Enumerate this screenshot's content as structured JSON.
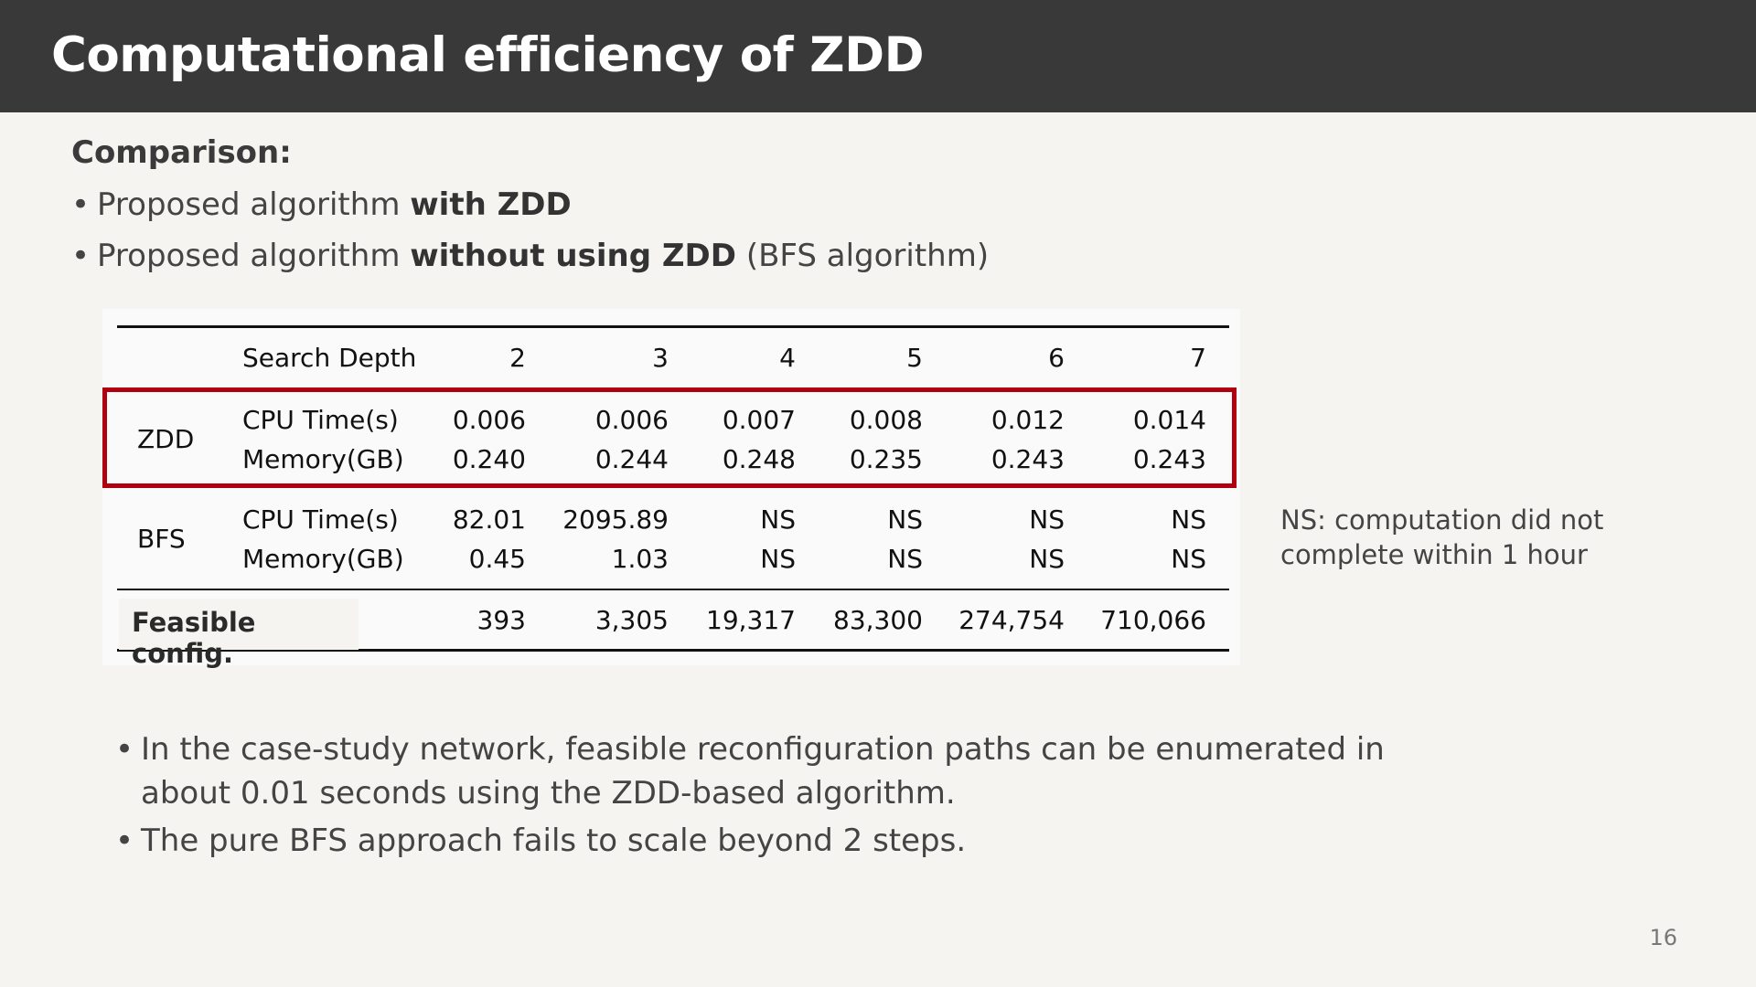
{
  "title": "Computational efficiency of ZDD",
  "subhead": "Comparison:",
  "bullets_top": [
    {
      "pre": "Proposed algorithm ",
      "bold": "with ZDD",
      "post": ""
    },
    {
      "pre": "Proposed algorithm ",
      "bold": "without using ZDD",
      "post": " (BFS algorithm)"
    }
  ],
  "table": {
    "header_label": "Search Depth",
    "depths": [
      "2",
      "3",
      "4",
      "5",
      "6",
      "7"
    ],
    "groups": [
      {
        "name": "ZDD",
        "rows": [
          {
            "metric": "CPU Time(s)",
            "values": [
              "0.006",
              "0.006",
              "0.007",
              "0.008",
              "0.012",
              "0.014"
            ]
          },
          {
            "metric": "Memory(GB)",
            "values": [
              "0.240",
              "0.244",
              "0.248",
              "0.235",
              "0.243",
              "0.243"
            ]
          }
        ]
      },
      {
        "name": "BFS",
        "rows": [
          {
            "metric": "CPU Time(s)",
            "values": [
              "82.01",
              "2095.89",
              "NS",
              "NS",
              "NS",
              "NS"
            ]
          },
          {
            "metric": "Memory(GB)",
            "values": [
              "0.45",
              "1.03",
              "NS",
              "NS",
              "NS",
              "NS"
            ]
          }
        ]
      }
    ],
    "feasible_label": "Feasible config.",
    "feasible_values": [
      "393",
      "3,305",
      "19,317",
      "83,300",
      "274,754",
      "710,066"
    ]
  },
  "ns_note": {
    "line1": "NS: computation did not",
    "line2": "complete within 1 hour"
  },
  "bullets_bottom": [
    "In the case-study network, feasible reconfiguration paths can be enumerated in about 0.01 seconds using the ZDD-based algorithm.",
    "The pure BFS approach fails to scale beyond 2 steps."
  ],
  "page_number": "16",
  "colors": {
    "title_bar": "#393939",
    "highlight_box": "#b00010",
    "background": "#f5f4f0"
  }
}
